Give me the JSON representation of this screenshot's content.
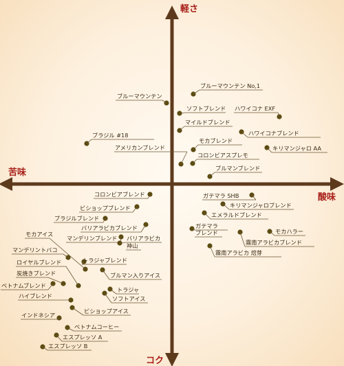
{
  "axes": {
    "top": "軽さ",
    "bottom": "コク",
    "left": "苦味",
    "right": "酸味"
  },
  "colors": {
    "axis": "#5e3a1d",
    "dot": "#5c4c12",
    "axis_label": "#a8201a",
    "background": "#fdf0de"
  },
  "items": [
    {
      "label": "ブルーマウンテン No,1"
    },
    {
      "label": "ブルーマウンテン"
    },
    {
      "label": "ソフトブレンド"
    },
    {
      "label": "ハワイコナ EXF"
    },
    {
      "label": "マイルドブレンド"
    },
    {
      "label": "ブラジル #18"
    },
    {
      "label": "ハワイコナブレンド"
    },
    {
      "label": "モカブレンド"
    },
    {
      "label": "アメリカンブレンド"
    },
    {
      "label": "コロンビアスプレモ"
    },
    {
      "label": "キリマンジャロ AA"
    },
    {
      "label": "ブルマンブレンド"
    },
    {
      "label": "コロンビアブレンド"
    },
    {
      "label": "ガテマラ SHB"
    },
    {
      "label": "ビショップブレンド"
    },
    {
      "label": "キリマンジャロブレンド"
    },
    {
      "label": "ブラジルブレンド"
    },
    {
      "label": "エメラルドブレンド"
    },
    {
      "label": "バリアラビカブレンド"
    },
    {
      "label": "モカアイス"
    },
    {
      "label": "ガテマラ"
    },
    {
      "label": "ブレンド"
    },
    {
      "label": "モカハラー"
    },
    {
      "label": "マンデリンブレンド"
    },
    {
      "label": "バリアラビカ"
    },
    {
      "label": "神山"
    },
    {
      "label": "霧南アラビカブレンド"
    },
    {
      "label": "マンデリントバコ"
    },
    {
      "label": "トラジャブレンド"
    },
    {
      "label": "霧南アラビカ 焙芽"
    },
    {
      "label": "ロイヤルブレンド"
    },
    {
      "label": "炭焼きブレンド"
    },
    {
      "label": "ブルマン入りアイス"
    },
    {
      "label": "ベトナムブレンド"
    },
    {
      "label": "トラジャ"
    },
    {
      "label": "ソフトアイス"
    },
    {
      "label": "ハイブレンド"
    },
    {
      "label": "ビショップアイス"
    },
    {
      "label": "インドネシア"
    },
    {
      "label": "ベトナムコーヒー"
    },
    {
      "label": "エスプレッソ A"
    },
    {
      "label": "エスプレッソ B"
    }
  ]
}
